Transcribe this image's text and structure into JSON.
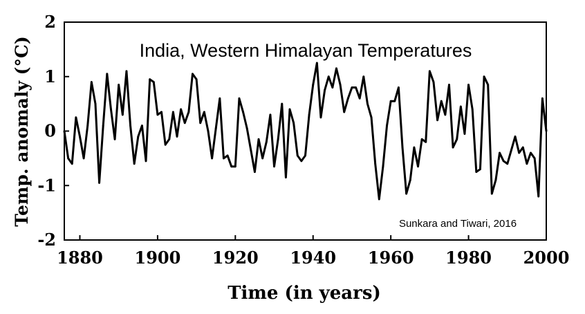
{
  "chart_data": {
    "type": "line",
    "title": "India, Western Himalayan Temperatures",
    "annotation": "Sunkara and Tiwari, 2016",
    "xlabel": "Time (in years)",
    "ylabel": "Temp. anomaly (°C)",
    "xlim": [
      1876,
      2000
    ],
    "ylim": [
      -2,
      2
    ],
    "xticks": [
      1880,
      1900,
      1920,
      1940,
      1960,
      1980,
      2000
    ],
    "xtick_labels": [
      "1880",
      "1900",
      "1920",
      "1940",
      "1960",
      "1980",
      "2000"
    ],
    "yticks": [
      -2,
      -1,
      0,
      1,
      2
    ],
    "ytick_labels": [
      "-2",
      "-1",
      "0",
      "1",
      "2"
    ],
    "grid": false,
    "legend": "none",
    "line_color": "#000000",
    "series": [
      {
        "x": [
          1876,
          1877,
          1878,
          1879,
          1880,
          1881,
          1882,
          1883,
          1884,
          1885,
          1886,
          1887,
          1888,
          1889,
          1890,
          1891,
          1892,
          1893,
          1894,
          1895,
          1896,
          1897,
          1898,
          1899,
          1900,
          1901,
          1902,
          1903,
          1904,
          1905,
          1906,
          1907,
          1908,
          1909,
          1910,
          1911,
          1912,
          1913,
          1914,
          1915,
          1916,
          1917,
          1918,
          1919,
          1920,
          1921,
          1922,
          1923,
          1924,
          1925,
          1926,
          1927,
          1928,
          1929,
          1930,
          1931,
          1932,
          1933,
          1934,
          1935,
          1936,
          1937,
          1938,
          1939,
          1940,
          1941,
          1942,
          1943,
          1944,
          1945,
          1946,
          1947,
          1948,
          1949,
          1950,
          1951,
          1952,
          1953,
          1954,
          1955,
          1956,
          1957,
          1958,
          1959,
          1960,
          1961,
          1962,
          1963,
          1964,
          1965,
          1966,
          1967,
          1968,
          1969,
          1970,
          1971,
          1972,
          1973,
          1974,
          1975,
          1976,
          1977,
          1978,
          1979,
          1980,
          1981,
          1982,
          1983,
          1984,
          1985,
          1986,
          1987,
          1988,
          1989,
          1990,
          1991,
          1992,
          1993,
          1994,
          1995,
          1996,
          1997,
          1998,
          1999,
          2000
        ],
        "y": [
          0.0,
          -0.5,
          -0.6,
          0.25,
          -0.1,
          -0.5,
          0.1,
          0.9,
          0.5,
          -0.95,
          0.1,
          1.05,
          0.4,
          -0.15,
          0.85,
          0.3,
          1.1,
          0.1,
          -0.6,
          -0.1,
          0.1,
          -0.55,
          0.95,
          0.9,
          0.3,
          0.35,
          -0.25,
          -0.15,
          0.35,
          -0.1,
          0.4,
          0.15,
          0.35,
          1.05,
          0.95,
          0.15,
          0.35,
          0.0,
          -0.5,
          0.05,
          0.6,
          -0.5,
          -0.45,
          -0.65,
          -0.65,
          0.6,
          0.35,
          0.05,
          -0.35,
          -0.75,
          -0.15,
          -0.5,
          -0.2,
          0.3,
          -0.65,
          -0.15,
          0.5,
          -0.85,
          0.4,
          0.15,
          -0.45,
          -0.55,
          -0.45,
          0.3,
          0.85,
          1.25,
          0.25,
          0.75,
          1.0,
          0.8,
          1.15,
          0.85,
          0.35,
          0.6,
          0.8,
          0.8,
          0.6,
          1.0,
          0.5,
          0.25,
          -0.6,
          -1.25,
          -0.65,
          0.1,
          0.55,
          0.55,
          0.8,
          -0.3,
          -1.15,
          -0.9,
          -0.3,
          -0.65,
          -0.15,
          -0.2,
          1.1,
          0.9,
          0.2,
          0.55,
          0.3,
          0.85,
          -0.3,
          -0.15,
          0.45,
          -0.05,
          0.85,
          0.4,
          -0.75,
          -0.7,
          1.0,
          0.85,
          -1.15,
          -0.9,
          -0.4,
          -0.55,
          -0.6,
          -0.35,
          -0.1,
          -0.4,
          -0.3,
          -0.6,
          -0.4,
          -0.5,
          -1.2,
          0.6,
          0.0
        ]
      }
    ]
  }
}
